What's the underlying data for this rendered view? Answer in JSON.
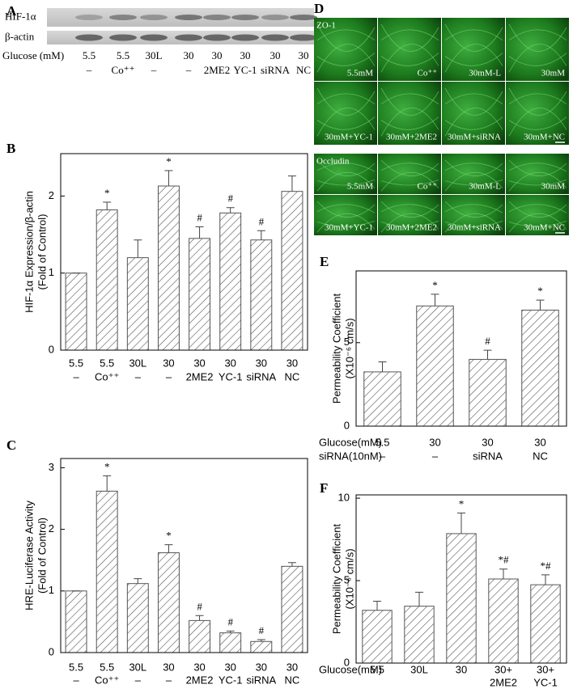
{
  "chart_data": [
    {
      "type": "bar",
      "panel_label": "B",
      "y_label": [
        "HIF-1α Expression/β-actin",
        "(Fold of Control)"
      ],
      "categories": [
        "5.5",
        "5.5",
        "30L",
        "30",
        "30",
        "30",
        "30",
        "30"
      ],
      "category_sublabels": [
        "–",
        "Co⁺⁺",
        "–",
        "–",
        "2ME2",
        "YC-1",
        "siRNA",
        "NC"
      ],
      "values": [
        1.0,
        1.82,
        1.2,
        2.13,
        1.45,
        1.78,
        1.43,
        2.06
      ],
      "errors": [
        0,
        0.1,
        0.23,
        0.2,
        0.15,
        0.07,
        0.12,
        0.2
      ],
      "markers": [
        null,
        "*",
        null,
        "*",
        "#",
        "#",
        "#",
        null
      ],
      "ylim": [
        0,
        2.55
      ],
      "yticks": [
        0,
        1,
        2
      ],
      "color": "#555555"
    },
    {
      "type": "bar",
      "panel_label": "C",
      "y_label": [
        "HRE-Luciferase  Activity",
        "(Fold of Control)"
      ],
      "categories": [
        "5.5",
        "5.5",
        "30L",
        "30",
        "30",
        "30",
        "30",
        "30"
      ],
      "category_sublabels": [
        "–",
        "Co⁺⁺",
        "–",
        "–",
        "2ME2",
        "YC-1",
        "siRNA",
        "NC"
      ],
      "values": [
        1.0,
        2.62,
        1.12,
        1.62,
        0.52,
        0.32,
        0.18,
        1.4
      ],
      "errors": [
        0,
        0.25,
        0.08,
        0.13,
        0.08,
        0.03,
        0.03,
        0.06
      ],
      "markers": [
        null,
        "*",
        null,
        "*",
        "#",
        "#",
        "#",
        null
      ],
      "ylim": [
        0,
        3.15
      ],
      "yticks": [
        0,
        1,
        2,
        3
      ],
      "color": "#555555"
    },
    {
      "type": "bar",
      "panel_label": "E",
      "y_label": [
        "Permeability Coefficient",
        "(X10⁻⁶ cm/s)"
      ],
      "row_labels": [
        "Glucose(mM)",
        "siRNA(10nM)"
      ],
      "categories": [
        "5.5",
        "30",
        "30",
        "30"
      ],
      "category_sublabels": [
        "–",
        "–",
        "siRNA",
        "NC"
      ],
      "values": [
        3.25,
        7.2,
        4.0,
        6.95
      ],
      "errors": [
        0.6,
        0.7,
        0.55,
        0.6
      ],
      "markers": [
        null,
        "*",
        "#",
        "*"
      ],
      "ylim": [
        0,
        9.3
      ],
      "yticks": [
        0,
        5
      ],
      "color": "#555555"
    },
    {
      "type": "bar",
      "panel_label": "F",
      "y_label": [
        "Permeability Coefficient",
        "(X10⁻⁶ cm/s)"
      ],
      "row_labels": [
        "Glucose(mM)"
      ],
      "categories": [
        "5.5",
        "30L",
        "30",
        "30+",
        "30+"
      ],
      "category_sublabels": [
        null,
        null,
        null,
        "2ME2",
        "YC-1"
      ],
      "values": [
        3.2,
        3.45,
        7.85,
        5.1,
        4.75
      ],
      "errors": [
        0.55,
        0.85,
        1.25,
        0.6,
        0.6
      ],
      "markers": [
        null,
        null,
        "*",
        "*#",
        "*#"
      ],
      "ylim": [
        0,
        10.2
      ],
      "yticks": [
        0,
        5,
        10
      ],
      "color": "#555555"
    }
  ],
  "blot": {
    "panel_label": "A",
    "rows": [
      "HIF-1α",
      "β-actin"
    ],
    "row_label": "Glucose (mM)",
    "lanes": [
      "5.5",
      "5.5",
      "30L",
      "30",
      "30",
      "30",
      "30",
      "30"
    ],
    "treatments": [
      "–",
      "Co⁺⁺",
      "–",
      "–",
      "2ME2",
      "YC-1",
      "siRNA",
      "NC"
    ]
  },
  "micrographs": {
    "panel_label": "D",
    "blocks": [
      {
        "title": "ZO-1",
        "cells": [
          "5.5mM",
          "Co⁺⁺",
          "30mM-L",
          "30mM",
          "30mM+YC-1",
          "30mM+2ME2",
          "30mM+siRNA",
          "30mM+NC"
        ]
      },
      {
        "title": "Occludin",
        "cells": [
          "5.5mM",
          "Co⁺⁺",
          "30mM-L",
          "30mM",
          "30mM+YC-1",
          "30mM+2ME2",
          "30mM+siRNA",
          "30mM+NC"
        ]
      }
    ]
  }
}
